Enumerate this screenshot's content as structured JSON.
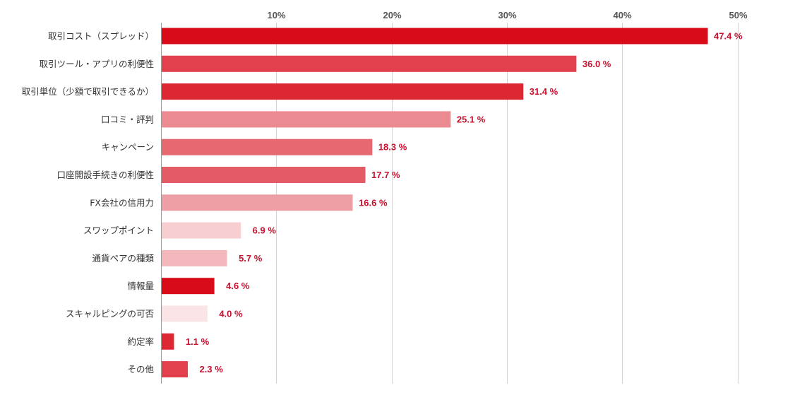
{
  "chart_data": {
    "type": "bar",
    "orientation": "horizontal",
    "title": "",
    "xlabel": "",
    "ylabel": "",
    "xlim": [
      0,
      50
    ],
    "x_ticks": [
      10,
      20,
      30,
      40,
      50
    ],
    "x_tick_labels": [
      "10%",
      "20%",
      "30%",
      "40%",
      "50%"
    ],
    "x_axis_position": "top",
    "grid": true,
    "legend": "none",
    "value_suffix": " %",
    "categories": [
      "取引コスト（スプレッド）",
      "取引ツール・アプリの利便性",
      "取引単位（少額で取引できるか）",
      "口コミ・評判",
      "キャンペーン",
      "口座開設手続きの利便性",
      "FX会社の信用力",
      "スワップポイント",
      "通貨ペアの種類",
      "情報量",
      "スキャルピングの可否",
      "約定率",
      "その他"
    ],
    "values": [
      47.4,
      36.0,
      31.4,
      25.1,
      18.3,
      17.7,
      16.6,
      6.9,
      5.7,
      4.6,
      4.0,
      1.1,
      2.3
    ],
    "value_labels": [
      "47.4 %",
      "36.0 %",
      "31.4 %",
      "25.1 %",
      "18.3 %",
      "17.7 %",
      "16.6 %",
      "6.9 %",
      "5.7 %",
      "4.6 %",
      "4.0 %",
      "1.1 %",
      "2.3 %"
    ],
    "bar_colors": [
      "#d80c18",
      "#e1404c",
      "#dd2733",
      "#eb8a91",
      "#e66971",
      "#e35b64",
      "#ee9fa5",
      "#f7ced2",
      "#f3b7bc",
      "#d80c18",
      "#fbe4e6",
      "#dd2733",
      "#e1404c"
    ],
    "value_label_color": "#c8102e",
    "gridline_color": "#d2d2d2"
  }
}
